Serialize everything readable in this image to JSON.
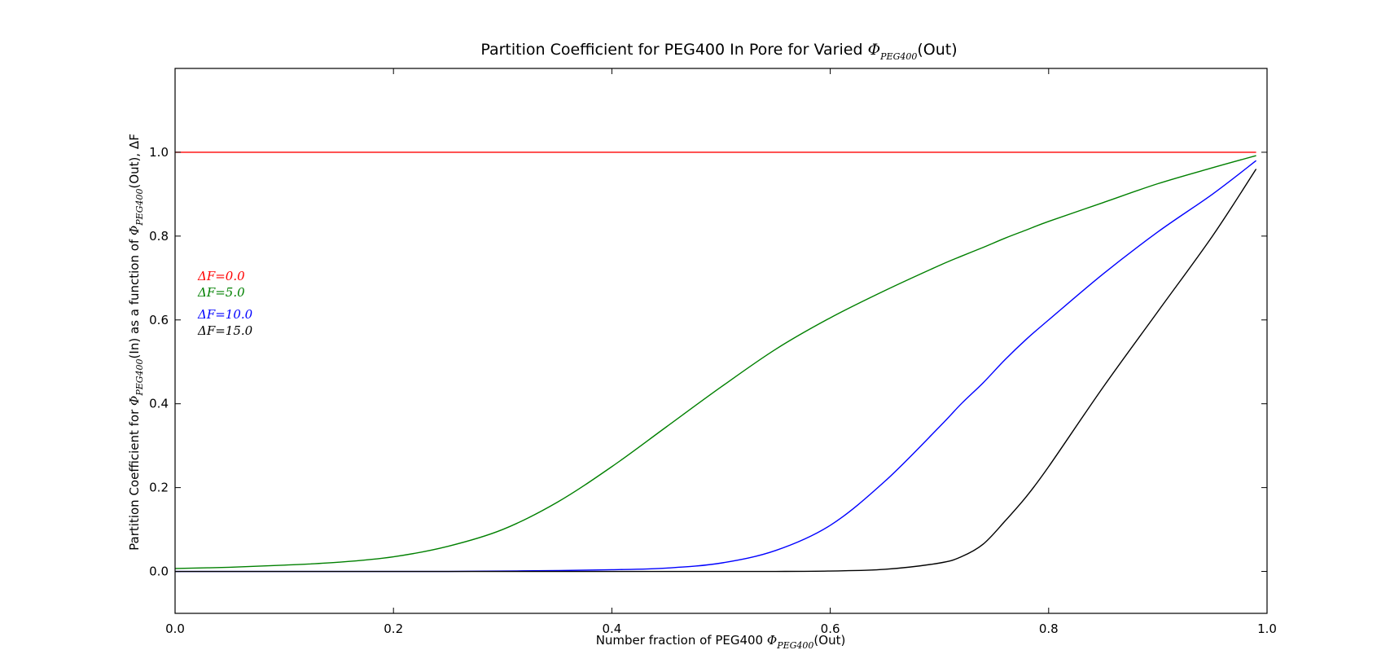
{
  "chart_data": {
    "type": "line",
    "title": "Partition Coefficient for PEG400 In Pore for Varied Φ_PEG400(Out)",
    "title_parts": {
      "prefix": "Partition Coefficient for PEG400 In Pore for Varied ",
      "symbol": "Φ",
      "sub": "PEG400",
      "suffix": "(Out)"
    },
    "xlabel": "Number fraction of PEG400 Φ_PEG400(Out)",
    "xlabel_parts": {
      "prefix": "Number fraction of PEG400 ",
      "symbol": "Φ",
      "sub": "PEG400",
      "suffix": "(Out)"
    },
    "ylabel": "Partition Coefficient for Φ_PEG400(In) as a function of Φ_PEG400(Out), ΔF",
    "ylabel_parts": {
      "p1": "Partition Coefficient for ",
      "s1": "Φ",
      "sub1": "PEG400",
      "p2": "(In) as a function of ",
      "s2": "Φ",
      "sub2": "PEG400",
      "p3": "(Out), ΔF"
    },
    "xlim": [
      0.0,
      1.0
    ],
    "ylim": [
      -0.1,
      1.2
    ],
    "xticks": [
      0.0,
      0.2,
      0.4,
      0.6,
      0.8,
      1.0
    ],
    "xtick_labels": [
      "0.0",
      "0.2",
      "0.4",
      "0.6",
      "0.8",
      "1.0"
    ],
    "yticks": [
      0.0,
      0.2,
      0.4,
      0.6,
      0.8,
      1.0
    ],
    "ytick_labels": [
      "0.0",
      "0.2",
      "0.4",
      "0.6",
      "0.8",
      "1.0"
    ],
    "grid": false,
    "legend_position": "left",
    "x": [
      0.0,
      0.05,
      0.1,
      0.15,
      0.2,
      0.25,
      0.3,
      0.35,
      0.4,
      0.45,
      0.5,
      0.55,
      0.6,
      0.65,
      0.7,
      0.72,
      0.74,
      0.76,
      0.78,
      0.8,
      0.85,
      0.9,
      0.95,
      0.99
    ],
    "series": [
      {
        "name": "ΔF=0.0",
        "color": "#ff0000",
        "values": [
          1.0,
          1.0,
          1.0,
          1.0,
          1.0,
          1.0,
          1.0,
          1.0,
          1.0,
          1.0,
          1.0,
          1.0,
          1.0,
          1.0,
          1.0,
          1.0,
          1.0,
          1.0,
          1.0,
          1.0,
          1.0,
          1.0,
          1.0,
          1.0
        ]
      },
      {
        "name": "ΔF=5.0",
        "color": "#008000",
        "values": [
          0.007,
          0.01,
          0.015,
          0.022,
          0.035,
          0.06,
          0.1,
          0.165,
          0.25,
          0.345,
          0.44,
          0.53,
          0.605,
          0.67,
          0.73,
          0.752,
          0.773,
          0.795,
          0.815,
          0.835,
          0.88,
          0.925,
          0.963,
          0.992
        ]
      },
      {
        "name": "ΔF=10.0",
        "color": "#0000ff",
        "values": [
          0.0,
          0.0,
          0.0,
          0.0,
          0.0,
          0.0,
          0.001,
          0.002,
          0.004,
          0.008,
          0.02,
          0.05,
          0.11,
          0.215,
          0.345,
          0.4,
          0.45,
          0.505,
          0.555,
          0.6,
          0.71,
          0.81,
          0.9,
          0.98
        ]
      },
      {
        "name": "ΔF=15.0",
        "color": "#000000",
        "values": [
          0.0,
          0.0,
          0.0,
          0.0,
          0.0,
          0.0,
          0.0,
          0.0,
          0.0,
          0.0,
          0.0,
          0.0,
          0.001,
          0.005,
          0.02,
          0.035,
          0.065,
          0.12,
          0.18,
          0.25,
          0.44,
          0.62,
          0.8,
          0.96
        ]
      }
    ],
    "legend_entries": [
      {
        "label": "ΔF=0.0",
        "color": "#ff0000"
      },
      {
        "label": "ΔF=5.0",
        "color": "#008000"
      },
      {
        "label": "ΔF=10.0",
        "color": "#0000ff"
      },
      {
        "label": "ΔF=15.0",
        "color": "#000000"
      }
    ]
  }
}
